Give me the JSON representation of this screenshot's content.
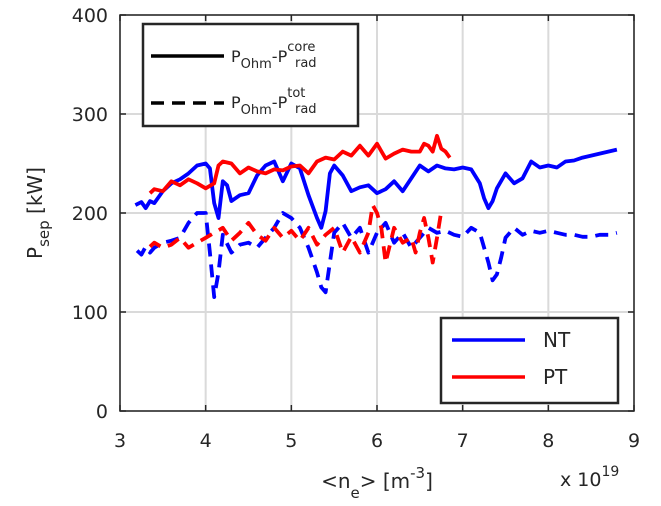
{
  "chart_data": {
    "type": "line",
    "xlabel": {
      "prefix": "<n",
      "sub": "e",
      "suffix": "> [m",
      "sup": "-3",
      "close": "]"
    },
    "ylabel": {
      "main": "P",
      "sub": "sep",
      "suffix": " [kW]"
    },
    "x_exponent": {
      "base": "x 10",
      "sup": "19"
    },
    "xlim": [
      3,
      9
    ],
    "ylim": [
      0,
      400
    ],
    "xticks": [
      "3",
      "4",
      "5",
      "6",
      "7",
      "8",
      "9"
    ],
    "yticks": [
      "0",
      "100",
      "200",
      "300",
      "400"
    ],
    "grid": true,
    "style_legend": {
      "placement": "top-left",
      "entries": [
        {
          "style": "solid",
          "main": "P",
          "sub1": "Ohm",
          "mid": "-P",
          "sup2": "core",
          "sub2": "rad"
        },
        {
          "style": "dashed",
          "main": "P",
          "sub1": "Ohm",
          "mid": "-P",
          "sup2": "tot",
          "sub2": "rad"
        }
      ]
    },
    "color_legend": {
      "placement": "bottom-right",
      "entries": [
        {
          "label": "NT",
          "color": "#0000ff"
        },
        {
          "label": "PT",
          "color": "#ff0000"
        }
      ]
    },
    "series": [
      {
        "name": "NT",
        "color": "#0000ff",
        "style": "solid",
        "x": [
          3.18,
          3.25,
          3.3,
          3.35,
          3.4,
          3.5,
          3.6,
          3.7,
          3.8,
          3.9,
          4.0,
          4.05,
          4.1,
          4.15,
          4.2,
          4.25,
          4.3,
          4.4,
          4.5,
          4.6,
          4.7,
          4.8,
          4.9,
          5.0,
          5.1,
          5.2,
          5.3,
          5.35,
          5.4,
          5.45,
          5.5,
          5.6,
          5.7,
          5.8,
          5.9,
          6.0,
          6.1,
          6.2,
          6.3,
          6.4,
          6.5,
          6.6,
          6.7,
          6.8,
          6.9,
          7.0,
          7.1,
          7.2,
          7.25,
          7.3,
          7.35,
          7.4,
          7.5,
          7.6,
          7.7,
          7.8,
          7.9,
          8.0,
          8.1,
          8.2,
          8.3,
          8.4,
          8.5,
          8.6,
          8.7,
          8.8
        ],
        "y": [
          208,
          211,
          205,
          212,
          210,
          222,
          230,
          234,
          240,
          248,
          250,
          245,
          210,
          195,
          232,
          228,
          212,
          218,
          220,
          238,
          248,
          252,
          232,
          250,
          245,
          218,
          195,
          185,
          202,
          240,
          248,
          238,
          222,
          226,
          228,
          220,
          224,
          232,
          222,
          235,
          248,
          242,
          248,
          245,
          244,
          246,
          244,
          230,
          215,
          205,
          212,
          225,
          240,
          230,
          235,
          252,
          246,
          248,
          246,
          252,
          253,
          256,
          258,
          260,
          262,
          264
        ]
      },
      {
        "name": "PT",
        "color": "#ff0000",
        "style": "solid",
        "x": [
          3.35,
          3.4,
          3.5,
          3.6,
          3.7,
          3.8,
          3.9,
          4.0,
          4.1,
          4.15,
          4.2,
          4.3,
          4.4,
          4.5,
          4.6,
          4.7,
          4.8,
          4.9,
          5.0,
          5.1,
          5.2,
          5.3,
          5.4,
          5.5,
          5.6,
          5.7,
          5.8,
          5.9,
          6.0,
          6.1,
          6.2,
          6.3,
          6.4,
          6.5,
          6.55,
          6.6,
          6.65,
          6.7,
          6.75,
          6.8,
          6.85
        ],
        "y": [
          220,
          224,
          222,
          232,
          228,
          234,
          230,
          225,
          230,
          248,
          252,
          250,
          240,
          246,
          242,
          240,
          244,
          243,
          247,
          248,
          240,
          252,
          256,
          254,
          262,
          258,
          268,
          258,
          270,
          255,
          260,
          264,
          262,
          262,
          270,
          268,
          262,
          278,
          265,
          262,
          256
        ]
      },
      {
        "name": "NT",
        "color": "#0000ff",
        "style": "dashed",
        "x": [
          3.2,
          3.25,
          3.3,
          3.35,
          3.4,
          3.5,
          3.6,
          3.7,
          3.8,
          3.9,
          4.0,
          4.05,
          4.1,
          4.15,
          4.2,
          4.3,
          4.4,
          4.5,
          4.6,
          4.7,
          4.8,
          4.9,
          5.0,
          5.1,
          5.2,
          5.3,
          5.35,
          5.4,
          5.45,
          5.5,
          5.6,
          5.7,
          5.8,
          5.9,
          6.0,
          6.1,
          6.2,
          6.3,
          6.4,
          6.5,
          6.6,
          6.7,
          6.8,
          6.9,
          7.0,
          7.1,
          7.2,
          7.3,
          7.35,
          7.4,
          7.45,
          7.5,
          7.6,
          7.7,
          7.8,
          7.9,
          8.0,
          8.1,
          8.2,
          8.3,
          8.4,
          8.5,
          8.6,
          8.7,
          8.8
        ],
        "y": [
          162,
          158,
          166,
          160,
          165,
          170,
          172,
          175,
          190,
          200,
          200,
          160,
          115,
          140,
          178,
          160,
          168,
          170,
          165,
          175,
          185,
          200,
          195,
          185,
          165,
          140,
          125,
          120,
          150,
          180,
          190,
          175,
          185,
          160,
          180,
          190,
          170,
          180,
          165,
          175,
          185,
          180,
          182,
          178,
          176,
          185,
          180,
          150,
          132,
          138,
          155,
          175,
          185,
          178,
          182,
          180,
          182,
          180,
          178,
          178,
          176,
          176,
          178,
          178,
          180
        ]
      },
      {
        "name": "PT",
        "color": "#ff0000",
        "style": "dashed",
        "x": [
          3.35,
          3.4,
          3.5,
          3.6,
          3.7,
          3.8,
          3.9,
          4.0,
          4.1,
          4.2,
          4.3,
          4.4,
          4.5,
          4.6,
          4.7,
          4.8,
          4.9,
          5.0,
          5.1,
          5.2,
          5.3,
          5.4,
          5.5,
          5.6,
          5.7,
          5.8,
          5.9,
          5.95,
          6.0,
          6.05,
          6.1,
          6.2,
          6.3,
          6.4,
          6.45,
          6.5,
          6.55,
          6.6,
          6.65,
          6.7,
          6.75
        ],
        "y": [
          166,
          170,
          165,
          168,
          175,
          165,
          170,
          175,
          180,
          185,
          172,
          180,
          190,
          178,
          172,
          185,
          175,
          182,
          172,
          185,
          168,
          178,
          185,
          160,
          176,
          160,
          180,
          208,
          200,
          185,
          150,
          185,
          170,
          175,
          160,
          180,
          195,
          175,
          150,
          175,
          202
        ]
      }
    ]
  }
}
